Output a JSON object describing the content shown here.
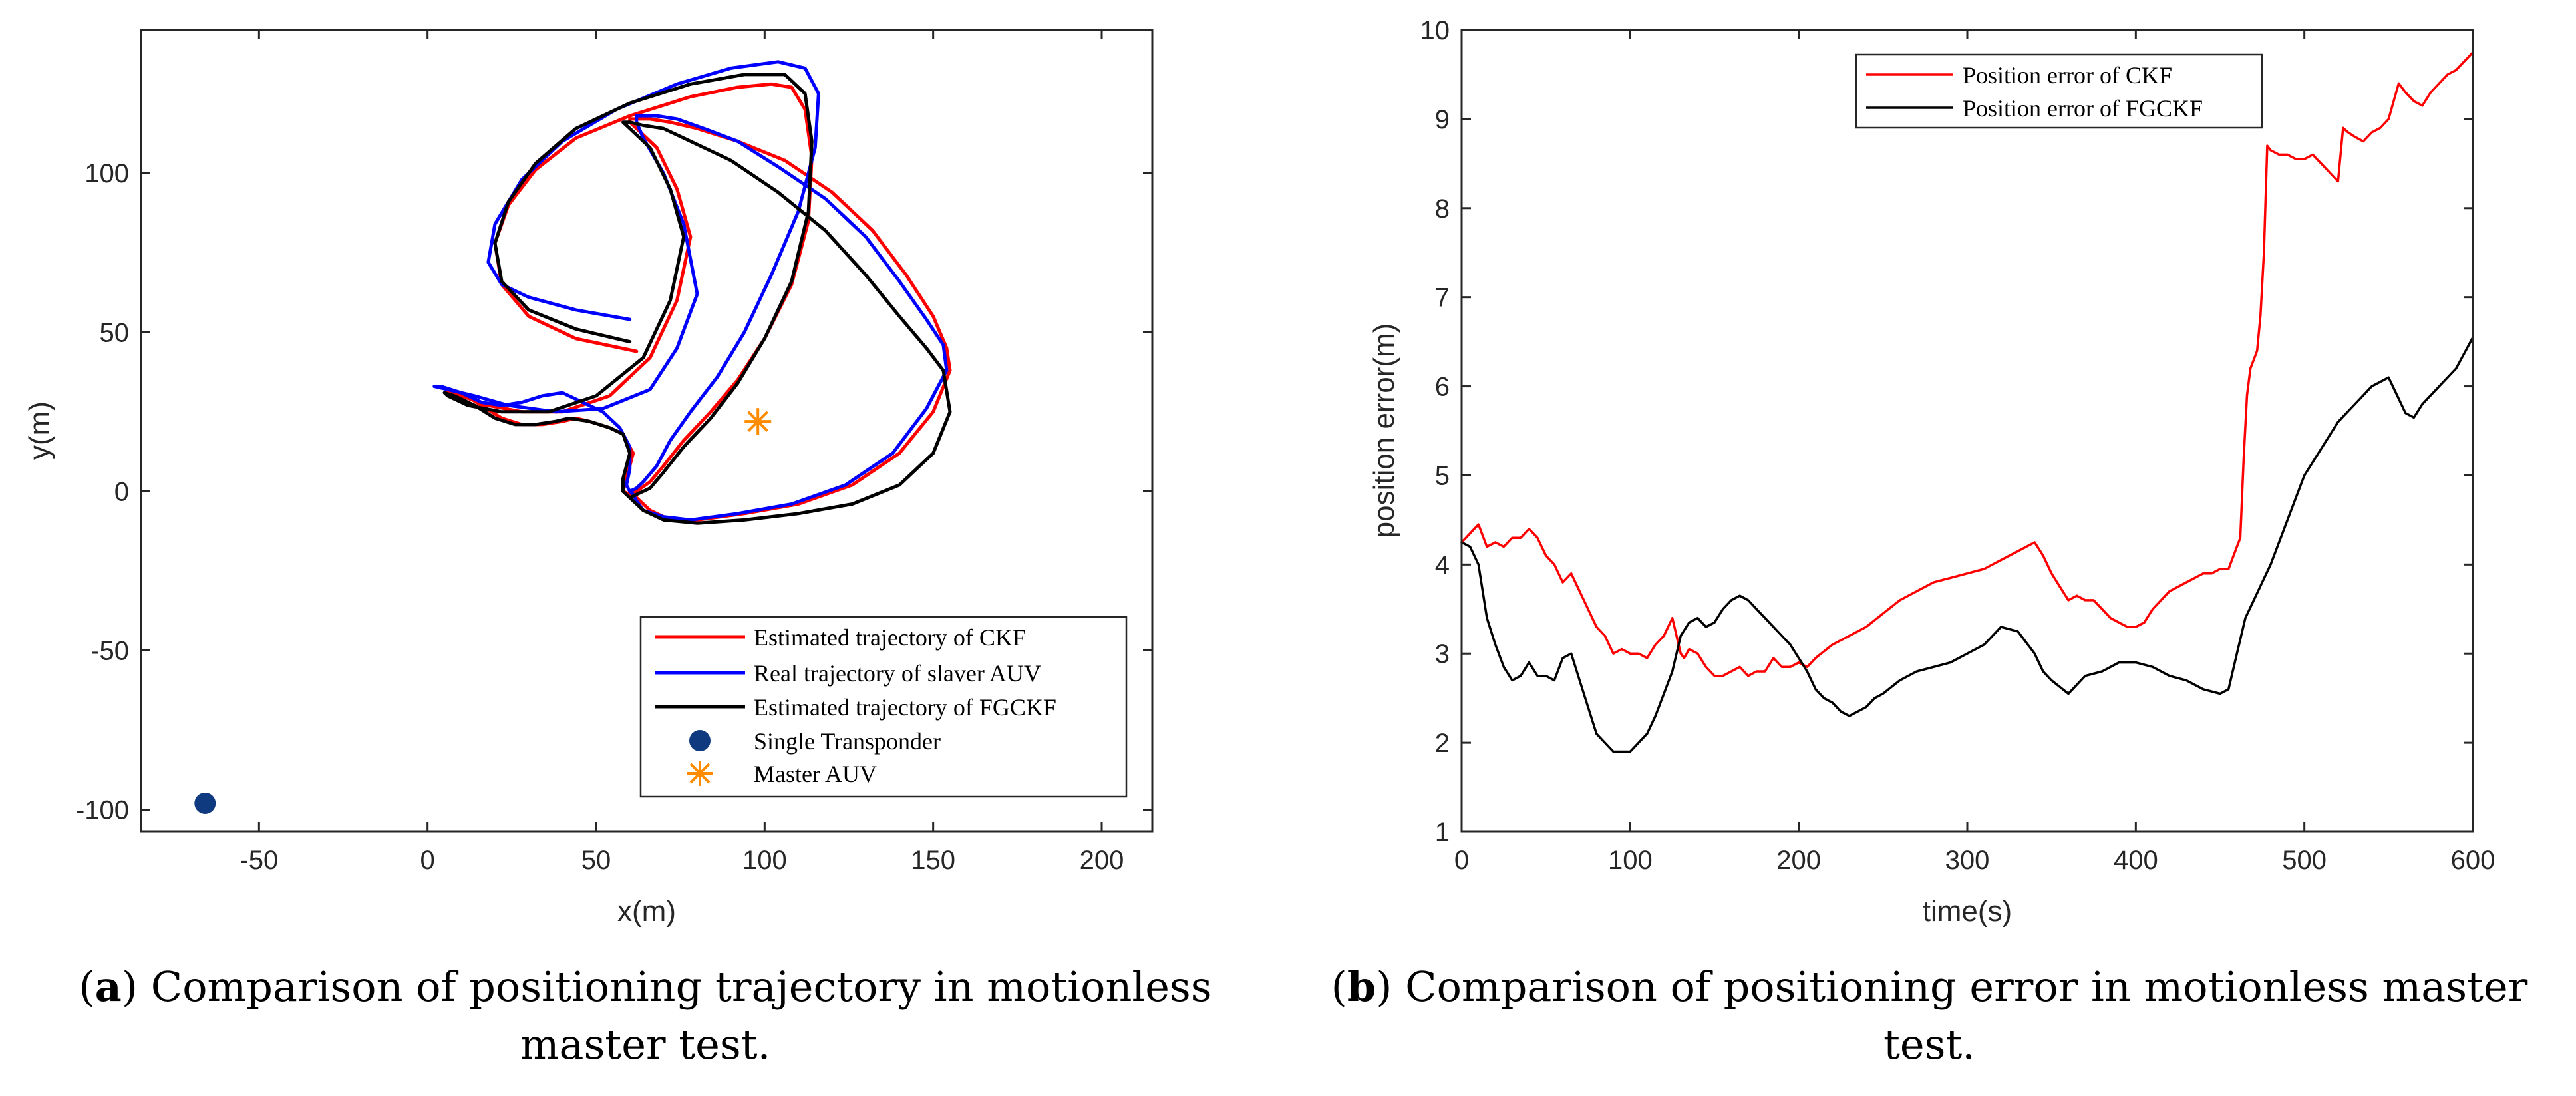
{
  "chart_data": [
    {
      "type": "line",
      "panel_id": "a",
      "xlabel": "x(m)",
      "ylabel": "y(m)",
      "xlim": [
        -85,
        215
      ],
      "ylim": [
        -107,
        145
      ],
      "xticks": [
        -50,
        0,
        50,
        100,
        150,
        200
      ],
      "yticks": [
        -100,
        -50,
        0,
        50,
        100
      ],
      "xtick_labels": [
        "-50",
        "0",
        "50",
        "100",
        "150",
        "200"
      ],
      "ytick_labels": [
        "-100",
        "-50",
        "0",
        "50",
        "100"
      ],
      "legend_position": "bottom-right",
      "series": [
        {
          "name": "Estimated trajectory of CKF",
          "color": "#ff0000",
          "x": [
            62,
            44,
            30,
            22,
            20,
            24,
            32,
            44,
            60,
            78,
            92,
            102,
            108,
            112,
            114,
            113,
            108,
            100,
            92,
            84,
            76,
            70,
            66,
            62,
            60,
            58,
            59,
            61,
            58,
            54,
            48,
            44,
            40,
            34,
            28,
            22,
            16,
            10,
            6,
            6,
            10,
            18,
            28,
            40,
            54,
            66,
            74,
            78,
            74,
            68,
            62,
            60,
            60,
            62,
            66,
            72,
            80,
            92,
            106,
            120,
            132,
            142,
            150,
            154,
            155,
            150,
            140,
            126,
            110,
            94,
            80,
            72,
            66,
            62,
            60,
            60
          ],
          "y": [
            44,
            48,
            55,
            65,
            78,
            90,
            101,
            111,
            118,
            124,
            127,
            128,
            127,
            120,
            105,
            85,
            65,
            48,
            35,
            25,
            16,
            8,
            3,
            0,
            -1,
            0,
            4,
            12,
            18,
            20,
            22,
            23,
            22,
            21,
            21,
            23,
            27,
            31,
            32,
            31,
            30,
            27,
            25,
            25,
            30,
            42,
            60,
            80,
            95,
            108,
            114,
            116,
            117,
            117,
            117,
            116,
            114,
            110,
            104,
            94,
            82,
            68,
            55,
            45,
            38,
            25,
            12,
            2,
            -4,
            -7,
            -9,
            -9,
            -6,
            -2,
            0,
            0
          ]
        },
        {
          "name": "Real trajectory of slaver AUV",
          "color": "#0000ff",
          "x": [
            60,
            44,
            30,
            22,
            18,
            20,
            28,
            40,
            56,
            74,
            90,
            104,
            112,
            116,
            115,
            110,
            102,
            94,
            86,
            78,
            72,
            68,
            64,
            62,
            60,
            59,
            60,
            60,
            57,
            52,
            46,
            40,
            34,
            28,
            22,
            16,
            10,
            4,
            2,
            6,
            14,
            24,
            38,
            52,
            66,
            74,
            80,
            76,
            70,
            64,
            62,
            62,
            64,
            68,
            74,
            82,
            92,
            104,
            118,
            130,
            140,
            148,
            153,
            154,
            148,
            138,
            124,
            108,
            92,
            78,
            70,
            64,
            62,
            61,
            60
          ],
          "y": [
            54,
            57,
            61,
            65,
            72,
            84,
            98,
            110,
            120,
            128,
            133,
            135,
            133,
            125,
            108,
            88,
            68,
            50,
            36,
            25,
            16,
            8,
            3,
            1,
            0,
            2,
            7,
            14,
            20,
            25,
            28,
            31,
            30,
            28,
            27,
            28,
            31,
            33,
            33,
            32,
            30,
            27,
            25,
            26,
            32,
            45,
            62,
            84,
            100,
            111,
            116,
            118,
            118,
            118,
            117,
            114,
            110,
            102,
            92,
            80,
            66,
            54,
            46,
            38,
            26,
            12,
            2,
            -4,
            -7,
            -9,
            -8,
            -6,
            -3,
            -1,
            0
          ]
        },
        {
          "name": "Estimated trajectory of FGCKF",
          "color": "#000000",
          "x": [
            60,
            44,
            30,
            22,
            20,
            24,
            32,
            44,
            60,
            78,
            94,
            106,
            112,
            114,
            113,
            108,
            100,
            92,
            84,
            76,
            70,
            66,
            62,
            60,
            58,
            58,
            60,
            58,
            54,
            48,
            42,
            38,
            32,
            26,
            20,
            14,
            8,
            5,
            6,
            12,
            22,
            36,
            50,
            64,
            72,
            76,
            72,
            66,
            60,
            58,
            58,
            60,
            64,
            70,
            78,
            90,
            104,
            118,
            130,
            140,
            148,
            153,
            155,
            150,
            140,
            126,
            110,
            94,
            80,
            70,
            64,
            60,
            58,
            58
          ],
          "y": [
            47,
            51,
            57,
            66,
            78,
            91,
            103,
            114,
            122,
            128,
            131,
            131,
            125,
            110,
            88,
            66,
            48,
            34,
            23,
            14,
            6,
            1,
            -1,
            -2,
            0,
            4,
            12,
            18,
            20,
            22,
            23,
            22,
            21,
            21,
            23,
            27,
            30,
            31,
            30,
            27,
            25,
            25,
            30,
            42,
            60,
            80,
            95,
            108,
            114,
            116,
            116,
            116,
            115,
            114,
            110,
            104,
            94,
            82,
            68,
            55,
            45,
            38,
            25,
            12,
            2,
            -4,
            -7,
            -9,
            -10,
            -9,
            -6,
            -2,
            0,
            0
          ]
        },
        {
          "name": "Single Transponder",
          "color": "#0f3a80",
          "marker": "circle",
          "x": [
            -66
          ],
          "y": [
            -98
          ]
        },
        {
          "name": "Master AUV",
          "color": "#ff8c00",
          "marker": "asterisk",
          "x": [
            98
          ],
          "y": [
            22
          ]
        }
      ]
    },
    {
      "type": "line",
      "panel_id": "b",
      "xlabel": "time(s)",
      "ylabel": "position error(m)",
      "xlim": [
        0,
        600
      ],
      "ylim": [
        1,
        10
      ],
      "xticks": [
        0,
        100,
        200,
        300,
        400,
        500,
        600
      ],
      "yticks": [
        1,
        2,
        3,
        4,
        5,
        6,
        7,
        8,
        9,
        10
      ],
      "xtick_labels": [
        "0",
        "100",
        "200",
        "300",
        "400",
        "500",
        "600"
      ],
      "ytick_labels": [
        "1",
        "2",
        "3",
        "4",
        "5",
        "6",
        "7",
        "8",
        "9",
        "10"
      ],
      "legend_position": "top-center",
      "series": [
        {
          "name": "Position error of CKF",
          "color": "#ff0000",
          "x": [
            0,
            5,
            10,
            15,
            20,
            25,
            30,
            35,
            40,
            45,
            50,
            55,
            60,
            65,
            70,
            75,
            80,
            85,
            90,
            95,
            100,
            105,
            110,
            115,
            120,
            125,
            130,
            132,
            135,
            140,
            145,
            150,
            155,
            160,
            165,
            170,
            175,
            180,
            185,
            190,
            195,
            200,
            205,
            210,
            220,
            230,
            240,
            250,
            260,
            270,
            280,
            290,
            300,
            310,
            320,
            330,
            335,
            340,
            345,
            350,
            355,
            360,
            365,
            370,
            375,
            380,
            385,
            390,
            395,
            400,
            405,
            410,
            415,
            420,
            425,
            430,
            435,
            440,
            445,
            450,
            455,
            460,
            462,
            464,
            466,
            468,
            470,
            472,
            474,
            476,
            478,
            480,
            485,
            490,
            495,
            500,
            505,
            510,
            515,
            520,
            523,
            526,
            530,
            535,
            540,
            545,
            550,
            553,
            556,
            560,
            565,
            570,
            575,
            580,
            585,
            590,
            595,
            600
          ],
          "y": [
            4.25,
            4.35,
            4.45,
            4.2,
            4.25,
            4.2,
            4.3,
            4.3,
            4.4,
            4.3,
            4.1,
            4.0,
            3.8,
            3.9,
            3.7,
            3.5,
            3.3,
            3.2,
            3.0,
            3.05,
            3.0,
            3.0,
            2.95,
            3.1,
            3.2,
            3.4,
            3.0,
            2.95,
            3.05,
            3.0,
            2.85,
            2.75,
            2.75,
            2.8,
            2.85,
            2.75,
            2.8,
            2.8,
            2.95,
            2.85,
            2.85,
            2.9,
            2.85,
            2.95,
            3.1,
            3.2,
            3.3,
            3.45,
            3.6,
            3.7,
            3.8,
            3.85,
            3.9,
            3.95,
            4.05,
            4.15,
            4.2,
            4.25,
            4.1,
            3.9,
            3.75,
            3.6,
            3.65,
            3.6,
            3.6,
            3.5,
            3.4,
            3.35,
            3.3,
            3.3,
            3.35,
            3.5,
            3.6,
            3.7,
            3.75,
            3.8,
            3.85,
            3.9,
            3.9,
            3.95,
            3.95,
            4.2,
            4.3,
            5.2,
            5.9,
            6.2,
            6.3,
            6.4,
            6.8,
            7.5,
            8.7,
            8.65,
            8.6,
            8.6,
            8.55,
            8.55,
            8.6,
            8.5,
            8.4,
            8.3,
            8.9,
            8.85,
            8.8,
            8.75,
            8.85,
            8.9,
            9.0,
            9.2,
            9.4,
            9.3,
            9.2,
            9.15,
            9.3,
            9.4,
            9.5,
            9.55,
            9.65,
            9.75
          ]
        },
        {
          "name": "Position error of FGCKF",
          "color": "#000000",
          "x": [
            0,
            5,
            10,
            15,
            20,
            25,
            30,
            35,
            40,
            45,
            50,
            55,
            60,
            65,
            70,
            75,
            80,
            85,
            90,
            95,
            100,
            105,
            110,
            115,
            120,
            125,
            130,
            135,
            140,
            145,
            150,
            155,
            160,
            165,
            170,
            175,
            180,
            185,
            190,
            195,
            200,
            205,
            210,
            215,
            220,
            225,
            230,
            235,
            240,
            245,
            250,
            260,
            270,
            280,
            290,
            300,
            310,
            320,
            330,
            340,
            345,
            350,
            360,
            370,
            380,
            390,
            400,
            410,
            420,
            430,
            440,
            450,
            455,
            460,
            465,
            470,
            475,
            480,
            490,
            500,
            510,
            520,
            530,
            540,
            550,
            555,
            560,
            565,
            570,
            575,
            580,
            590,
            600
          ],
          "y": [
            4.25,
            4.2,
            4.0,
            3.4,
            3.1,
            2.85,
            2.7,
            2.75,
            2.9,
            2.75,
            2.75,
            2.7,
            2.95,
            3.0,
            2.7,
            2.4,
            2.1,
            2.0,
            1.9,
            1.9,
            1.9,
            2.0,
            2.1,
            2.3,
            2.55,
            2.8,
            3.2,
            3.35,
            3.4,
            3.3,
            3.35,
            3.5,
            3.6,
            3.65,
            3.6,
            3.5,
            3.4,
            3.3,
            3.2,
            3.1,
            2.95,
            2.8,
            2.6,
            2.5,
            2.45,
            2.35,
            2.3,
            2.35,
            2.4,
            2.5,
            2.55,
            2.7,
            2.8,
            2.85,
            2.9,
            3.0,
            3.1,
            3.3,
            3.25,
            3.0,
            2.8,
            2.7,
            2.55,
            2.75,
            2.8,
            2.9,
            2.9,
            2.85,
            2.75,
            2.7,
            2.6,
            2.55,
            2.6,
            3.0,
            3.4,
            3.6,
            3.8,
            4.0,
            4.5,
            5.0,
            5.3,
            5.6,
            5.8,
            6.0,
            6.1,
            5.9,
            5.7,
            5.65,
            5.8,
            5.9,
            6.0,
            6.2,
            6.55
          ]
        }
      ]
    }
  ],
  "captions": {
    "a": {
      "label": "a",
      "text": "Comparison of positioning trajectory in motionless master test."
    },
    "b": {
      "label": "b",
      "text": "Comparison of positioning error in motionless master test."
    }
  }
}
